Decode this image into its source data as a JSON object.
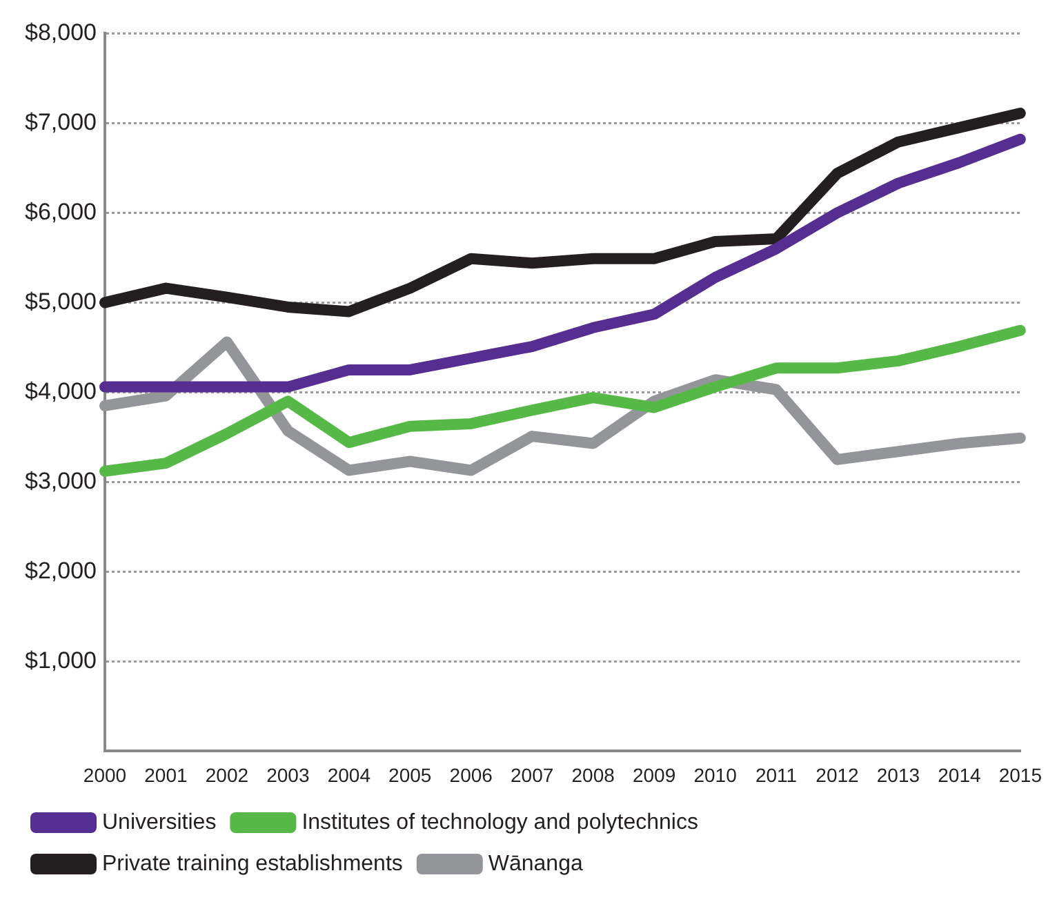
{
  "chart_data": {
    "type": "line",
    "categories": [
      "2000",
      "2001",
      "2002",
      "2003",
      "2004",
      "2005",
      "2006",
      "2007",
      "2008",
      "2009",
      "2010",
      "2011",
      "2012",
      "2013",
      "2014",
      "2015"
    ],
    "series": [
      {
        "name": "Universities",
        "color": "#562d91",
        "values": [
          4060,
          4060,
          4060,
          4060,
          4250,
          4250,
          4380,
          4510,
          4720,
          4870,
          5280,
          5600,
          6000,
          6330,
          6560,
          6820
        ]
      },
      {
        "name": "Institutes of technology and polytechnics",
        "color": "#56b947",
        "values": [
          3120,
          3210,
          3540,
          3900,
          3440,
          3620,
          3650,
          3800,
          3940,
          3830,
          4060,
          4270,
          4270,
          4350,
          4510,
          4690
        ]
      },
      {
        "name": "Private training establishments",
        "color": "#231f20",
        "values": [
          5000,
          5160,
          5060,
          4950,
          4900,
          5160,
          5490,
          5440,
          5490,
          5490,
          5680,
          5710,
          6440,
          6790,
          6950,
          7110
        ]
      },
      {
        "name": "Wānanga",
        "color": "#949599",
        "values": [
          3850,
          3960,
          4560,
          3570,
          3130,
          3230,
          3130,
          3510,
          3430,
          3900,
          4140,
          4030,
          3250,
          3340,
          3430,
          3490
        ]
      }
    ],
    "ylim": [
      0,
      8000
    ],
    "yticks": [
      {
        "value": 0,
        "label": null
      },
      {
        "value": 1000,
        "label": "$1,000"
      },
      {
        "value": 2000,
        "label": "$2,000"
      },
      {
        "value": 3000,
        "label": "$3,000"
      },
      {
        "value": 4000,
        "label": "$4,000"
      },
      {
        "value": 5000,
        "label": "$5,000"
      },
      {
        "value": 6000,
        "label": "$6,000"
      },
      {
        "value": 7000,
        "label": "$7,000"
      },
      {
        "value": 8000,
        "label": "$8,000"
      }
    ],
    "grid": "y",
    "legend": "bottom",
    "marker": "none",
    "line_style": "solid"
  }
}
